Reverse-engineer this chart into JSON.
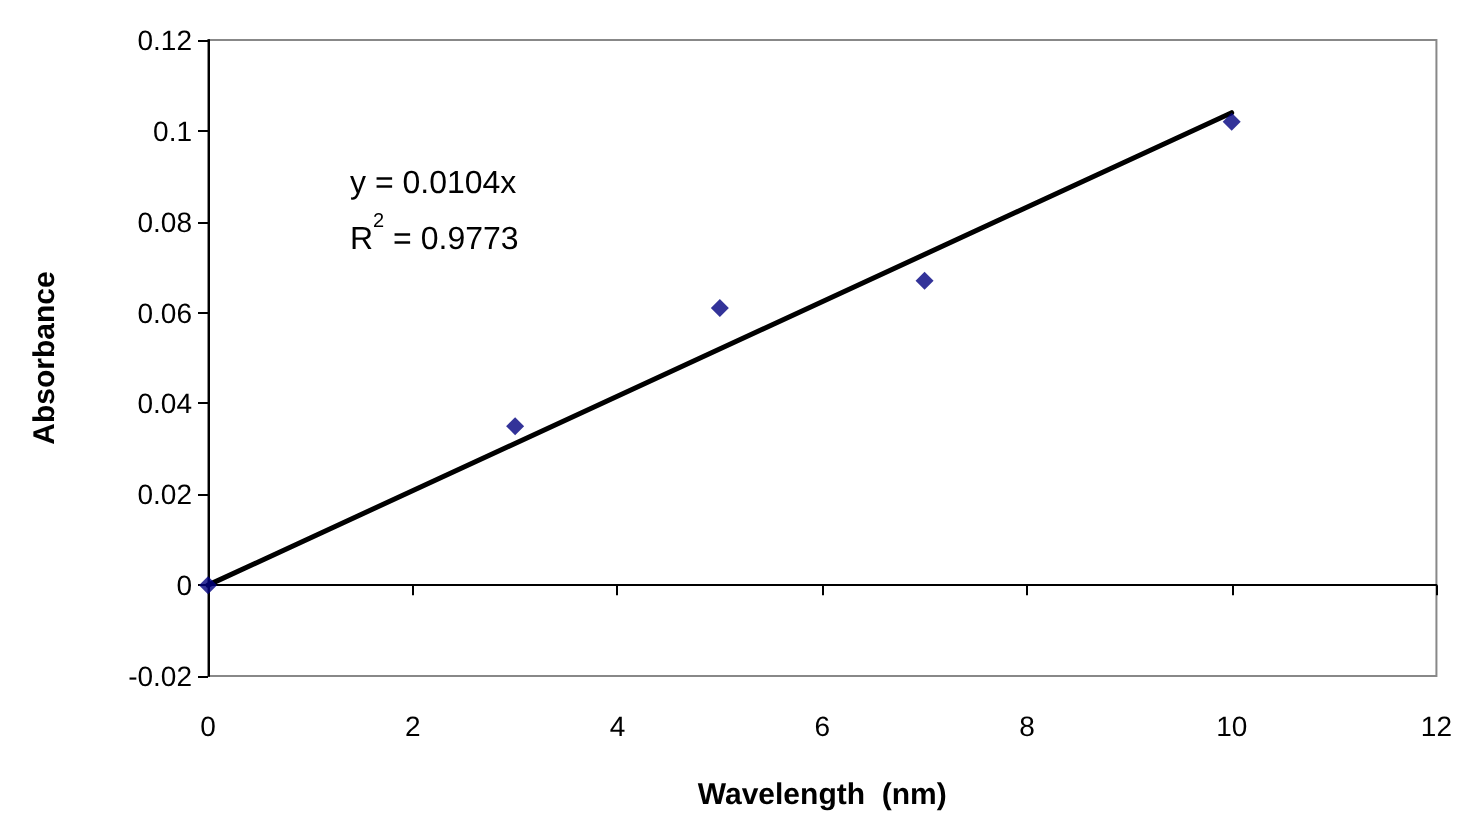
{
  "chart_data": {
    "type": "scatter",
    "xlabel": "Wavelength  (nm)",
    "ylabel": "Absorbance",
    "annotations": [
      "y = 0.0104x",
      "R$^{2}$ = 0.9773"
    ],
    "series": [
      {
        "color": "#000080",
        "marker": "diamond",
        "x": [
          0,
          3,
          5,
          7,
          10
        ],
        "values": [
          0,
          0.035,
          0.061,
          0.067,
          0.102
        ]
      },
      {
        "type": "line",
        "color": "#000000",
        "marker": "none",
        "line_style": "solid",
        "x": [
          0,
          10
        ],
        "values": [
          0,
          0.104
        ]
      }
    ],
    "xlim": [
      0,
      12
    ],
    "xticks": [
      0,
      2,
      4,
      6,
      8,
      10,
      12
    ],
    "ylim": [
      -0.02,
      0.12
    ],
    "yticks": [
      -0.02,
      0,
      0.02,
      0.04,
      0.06,
      0.08,
      0.1,
      0.12
    ]
  }
}
